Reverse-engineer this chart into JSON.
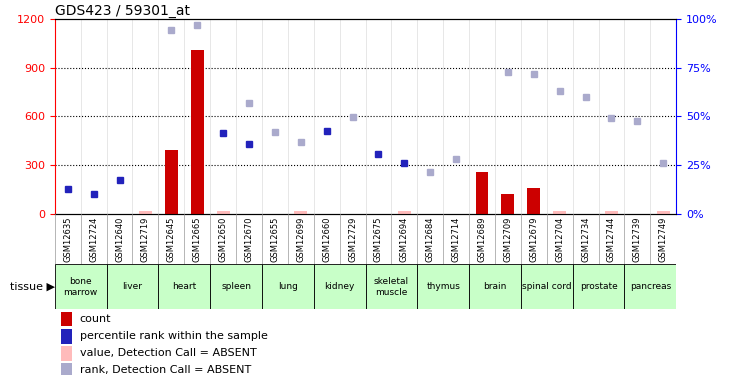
{
  "title": "GDS423 / 59301_at",
  "samples": [
    "GSM12635",
    "GSM12724",
    "GSM12640",
    "GSM12719",
    "GSM12645",
    "GSM12665",
    "GSM12650",
    "GSM12670",
    "GSM12655",
    "GSM12699",
    "GSM12660",
    "GSM12729",
    "GSM12675",
    "GSM12694",
    "GSM12684",
    "GSM12714",
    "GSM12689",
    "GSM12709",
    "GSM12679",
    "GSM12704",
    "GSM12734",
    "GSM12744",
    "GSM12739",
    "GSM12749"
  ],
  "tissues": [
    {
      "label": "bone\nmarrow",
      "start": 0,
      "end": 1,
      "color": "#c8ffc8"
    },
    {
      "label": "liver",
      "start": 2,
      "end": 3,
      "color": "#c8ffc8"
    },
    {
      "label": "heart",
      "start": 4,
      "end": 5,
      "color": "#c8ffc8"
    },
    {
      "label": "spleen",
      "start": 6,
      "end": 7,
      "color": "#c8ffc8"
    },
    {
      "label": "lung",
      "start": 8,
      "end": 9,
      "color": "#c8ffc8"
    },
    {
      "label": "kidney",
      "start": 10,
      "end": 11,
      "color": "#c8ffc8"
    },
    {
      "label": "skeletal\nmuscle",
      "start": 12,
      "end": 13,
      "color": "#c8ffc8"
    },
    {
      "label": "thymus",
      "start": 14,
      "end": 15,
      "color": "#c8ffc8"
    },
    {
      "label": "brain",
      "start": 16,
      "end": 17,
      "color": "#c8ffc8"
    },
    {
      "label": "spinal cord",
      "start": 18,
      "end": 19,
      "color": "#c8ffc8"
    },
    {
      "label": "prostate",
      "start": 20,
      "end": 21,
      "color": "#c8ffc8"
    },
    {
      "label": "pancreas",
      "start": 22,
      "end": 23,
      "color": "#c8ffc8"
    }
  ],
  "count_values": [
    null,
    null,
    null,
    null,
    390,
    1010,
    null,
    null,
    null,
    null,
    null,
    null,
    null,
    null,
    null,
    null,
    255,
    120,
    160,
    null,
    null,
    null,
    null,
    null
  ],
  "count_absent": [
    null,
    null,
    null,
    20,
    null,
    null,
    20,
    null,
    null,
    20,
    null,
    null,
    null,
    20,
    null,
    null,
    null,
    null,
    null,
    20,
    null,
    20,
    null,
    20
  ],
  "rank_values": [
    155,
    120,
    210,
    null,
    null,
    null,
    500,
    430,
    null,
    null,
    510,
    null,
    370,
    310,
    null,
    null,
    null,
    null,
    null,
    null,
    null,
    null,
    null,
    null
  ],
  "rank_absent": [
    null,
    null,
    null,
    null,
    1130,
    1160,
    null,
    680,
    505,
    440,
    null,
    595,
    null,
    null,
    255,
    340,
    null,
    870,
    860,
    755,
    720,
    590,
    570,
    315
  ],
  "ylim_left": [
    0,
    1200
  ],
  "ylim_right": [
    0,
    100
  ],
  "yticks_left": [
    0,
    300,
    600,
    900,
    1200
  ],
  "yticks_right": [
    0,
    25,
    50,
    75,
    100
  ],
  "bar_color": "#cc0000",
  "bar_absent_color": "#ffbbbb",
  "rank_color": "#2222bb",
  "rank_absent_color": "#aaaacc",
  "legend_items": [
    {
      "color": "#cc0000",
      "label": "count"
    },
    {
      "color": "#2222bb",
      "label": "percentile rank within the sample"
    },
    {
      "color": "#ffbbbb",
      "label": "value, Detection Call = ABSENT"
    },
    {
      "color": "#aaaacc",
      "label": "rank, Detection Call = ABSENT"
    }
  ]
}
